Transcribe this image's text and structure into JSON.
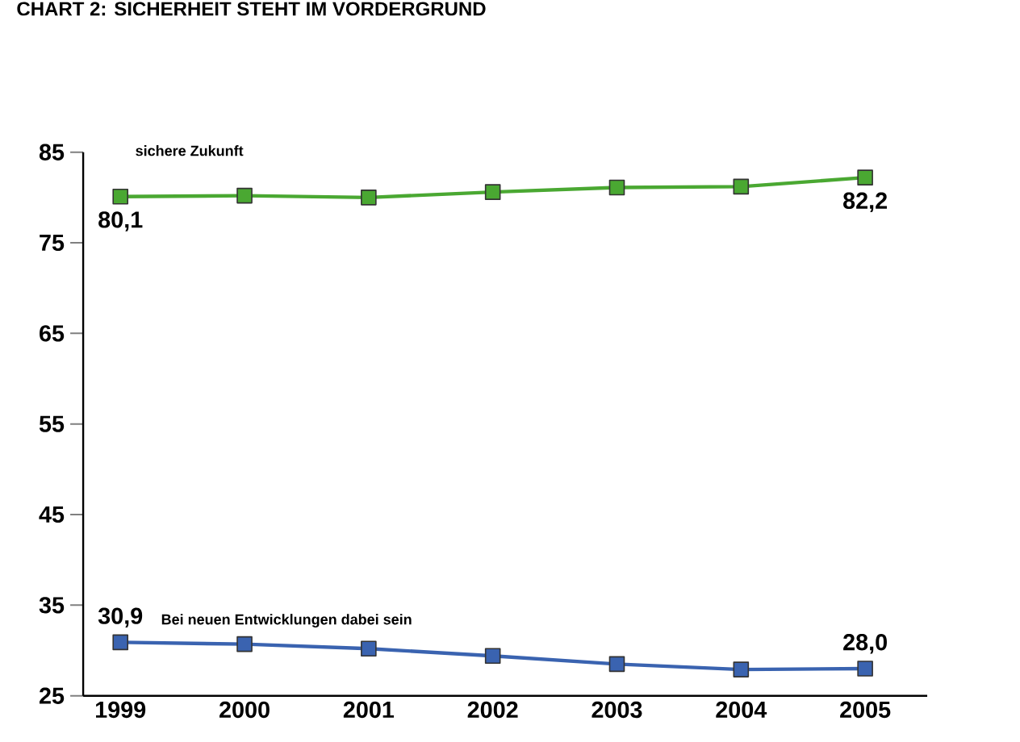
{
  "chart_data": {
    "type": "line",
    "title": "CHART 2: SICHERHEIT STEHT IM VORDERGRUND",
    "categories": [
      "1999",
      "2000",
      "2001",
      "2002",
      "2003",
      "2004",
      "2005"
    ],
    "ylim": [
      25,
      85
    ],
    "yticks": [
      25,
      35,
      45,
      55,
      65,
      75,
      85
    ],
    "marker": "square",
    "line_style": "solid",
    "grid": false,
    "series": [
      {
        "name": "sichere Zukunft",
        "color": "#4aa832",
        "values": [
          80.1,
          80.2,
          80.0,
          80.6,
          81.1,
          81.2,
          82.2
        ],
        "value_labels": [
          "80,1",
          null,
          null,
          null,
          null,
          null,
          "82,2"
        ]
      },
      {
        "name": "Bei neuen Entwicklungen dabei sein",
        "color": "#3a63b0",
        "values": [
          30.9,
          30.7,
          30.2,
          29.4,
          28.5,
          27.9,
          28.0
        ],
        "value_labels": [
          "30,9",
          null,
          null,
          null,
          null,
          null,
          "28,0"
        ]
      }
    ]
  }
}
